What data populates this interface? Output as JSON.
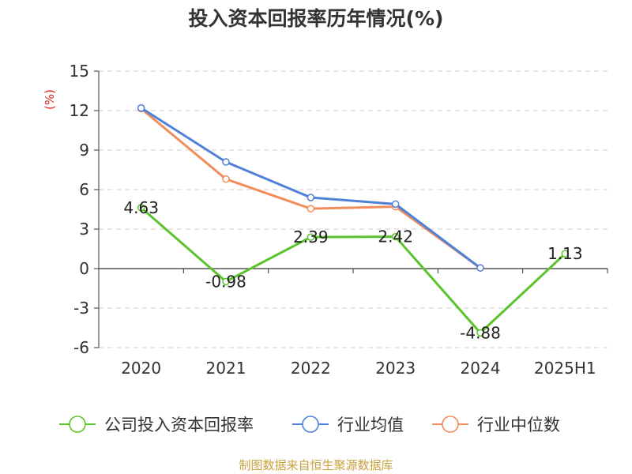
{
  "chart_data": {
    "type": "line",
    "title": "投入资本回报率历年情况(%)",
    "ylabel": "(%)",
    "categories": [
      "2020",
      "2021",
      "2022",
      "2023",
      "2024",
      "2025H1"
    ],
    "ylim": [
      -6,
      15
    ],
    "yticks": [
      "15",
      "12",
      "9",
      "6",
      "3",
      "0",
      "-3",
      "-6"
    ],
    "grid": true,
    "legend_position": "bottom",
    "series": [
      {
        "name": "公司投入资本回报率",
        "color": "#5bc32c",
        "values": [
          4.63,
          -0.98,
          2.39,
          2.42,
          -4.88,
          1.13
        ],
        "labels": [
          "4.63",
          "-0.98",
          "2.39",
          "2.42",
          "-4.88",
          "1.13"
        ]
      },
      {
        "name": "行业均值",
        "color": "#4f81d9",
        "values": [
          12.2,
          8.1,
          5.4,
          4.9,
          0.05,
          null
        ]
      },
      {
        "name": "行业中位数",
        "color": "#f28c5a",
        "values": [
          12.15,
          6.8,
          4.55,
          4.7,
          0.05,
          null
        ]
      }
    ]
  },
  "footer": {
    "source": "制图数据来自恒生聚源数据库"
  }
}
